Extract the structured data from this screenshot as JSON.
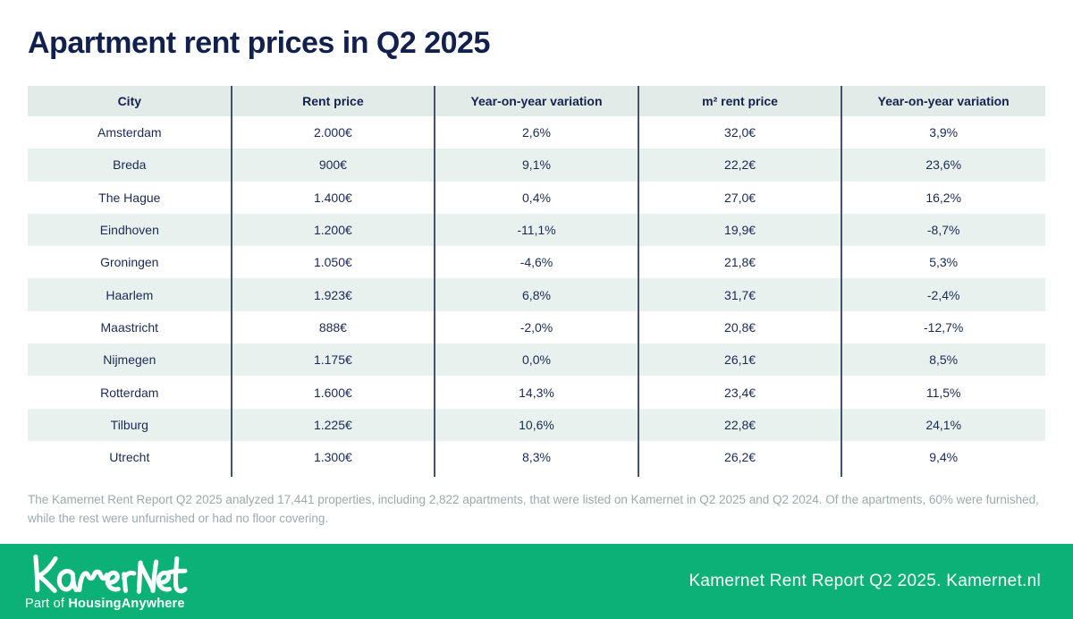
{
  "page": {
    "title": "Apartment rent prices in Q2 2025"
  },
  "table": {
    "columns": [
      "City",
      "Rent price",
      "Year-on-year variation",
      "m² rent price",
      "Year-on-year variation"
    ],
    "rows": [
      [
        "Amsterdam",
        "2.000€",
        "2,6%",
        "32,0€",
        "3,9%"
      ],
      [
        "Breda",
        "900€",
        "9,1%",
        "22,2€",
        "23,6%"
      ],
      [
        "The Hague",
        "1.400€",
        "0,4%",
        "27,0€",
        "16,2%"
      ],
      [
        "Eindhoven",
        "1.200€",
        "-11,1%",
        "19,9€",
        "-8,7%"
      ],
      [
        "Groningen",
        "1.050€",
        "-4,6%",
        "21,8€",
        "5,3%"
      ],
      [
        "Haarlem",
        "1.923€",
        "6,8%",
        "31,7€",
        "-2,4%"
      ],
      [
        "Maastricht",
        "888€",
        "-2,0%",
        "20,8€",
        "-12,7%"
      ],
      [
        "Nijmegen",
        "1.175€",
        "0,0%",
        "26,1€",
        "8,5%"
      ],
      [
        "Rotterdam",
        "1.600€",
        "14,3%",
        "23,4€",
        "11,5%"
      ],
      [
        "Tilburg",
        "1.225€",
        "10,6%",
        "22,8€",
        "24,1%"
      ],
      [
        "Utrecht",
        "1.300€",
        "8,3%",
        "26,2€",
        "9,4%"
      ]
    ]
  },
  "footnote": "The Kamernet Rent Report Q2 2025 analyzed 17,441 properties, including 2,822 apartments, that were listed on Kamernet in Q2 2025 and Q2 2024. Of the apartments, 60% were furnished, while the rest were unfurnished or had no floor covering.",
  "footer": {
    "logo_text": "Kamernet",
    "logo_sub_prefix": "Part of ",
    "logo_sub_brand": "HousingAnywhere",
    "right_text": "Kamernet Rent Report Q2 2025. Kamernet.nl"
  },
  "colors": {
    "brand_green": "#0bb176",
    "navy_text": "#12204d",
    "header_row_bg": "#e2ebe8",
    "stripe_row_bg": "#e9f1ef",
    "divider": "#44526b",
    "footnote_gray": "#9caaa8"
  }
}
